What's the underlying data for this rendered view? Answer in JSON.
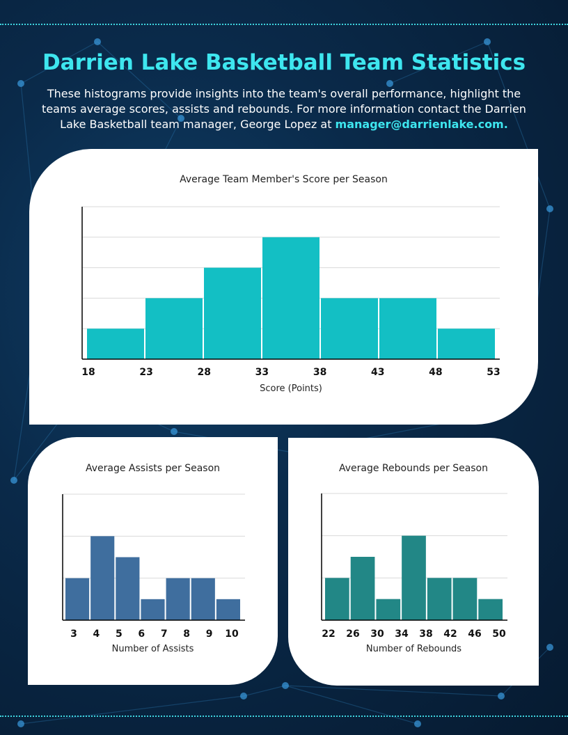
{
  "title": "Darrien Lake Basketball Team Statistics",
  "intro": {
    "text": "These histograms provide insights into the team's overall performance, highlight the teams average scores, assists and rebounds. For more information contact the Darrien Lake Basketball team manager, George Lopez at ",
    "email": "manager@darrienlake.com",
    "end": "."
  },
  "colors": {
    "background": "#0a2a4a",
    "accent": "#3ee6ef",
    "score_bars": "#13bfc4",
    "assist_bars": "#3f6e9e",
    "rebound_bars": "#228786"
  },
  "chart_data": [
    {
      "type": "bar",
      "title": "Average Team Member's Score per Season",
      "xlabel": "Score (Points)",
      "ylabel": "",
      "bin_edges": [
        18,
        23,
        28,
        33,
        38,
        43,
        48,
        53
      ],
      "values": [
        1,
        2,
        3,
        4,
        2,
        2,
        1
      ],
      "ylim": [
        0,
        5
      ],
      "grid": true,
      "color": "#13bfc4"
    },
    {
      "type": "bar",
      "title": "Average Assists per Season",
      "xlabel": "Number of Assists",
      "ylabel": "",
      "bin_edges": [
        3,
        4,
        5,
        6,
        7,
        8,
        9,
        10
      ],
      "values": [
        2,
        4,
        3,
        1,
        2,
        2,
        1
      ],
      "ylim": [
        0,
        6
      ],
      "grid": true,
      "color": "#3f6e9e"
    },
    {
      "type": "bar",
      "title": "Average Rebounds per Season",
      "xlabel": "Number of Rebounds",
      "ylabel": "",
      "bin_edges": [
        22,
        26,
        30,
        34,
        38,
        42,
        46,
        50
      ],
      "values": [
        2,
        3,
        1,
        4,
        2,
        2,
        1
      ],
      "ylim": [
        0,
        6
      ],
      "grid": true,
      "color": "#228786"
    }
  ]
}
